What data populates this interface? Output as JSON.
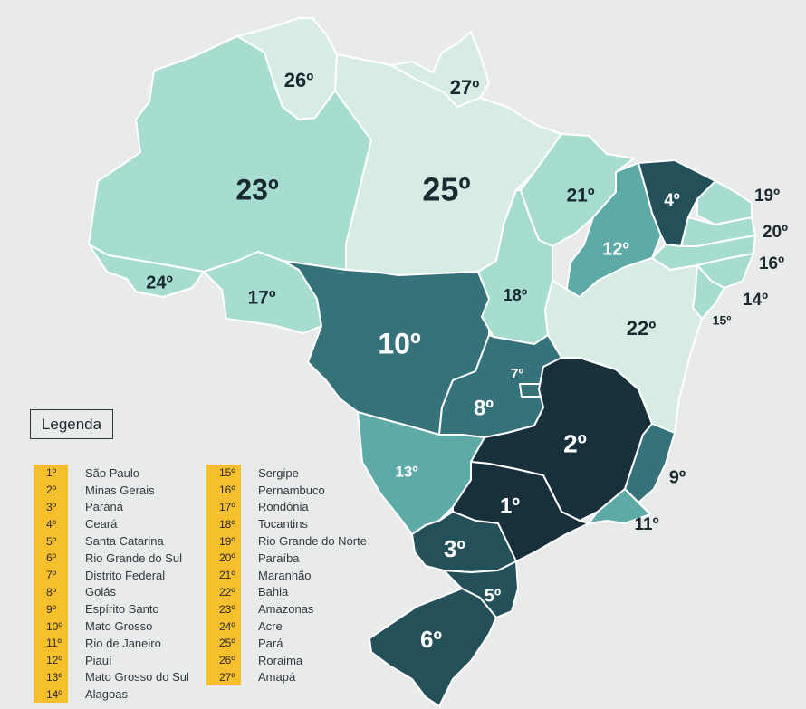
{
  "colors": {
    "tier_lightest": "#d8ece6",
    "tier_light": "#a6ddd0",
    "tier_mid": "#5daaa6",
    "tier_dark": "#35727a",
    "tier_darker": "#24505a",
    "tier_darkest": "#17303c",
    "legend_rank_bg": "#f6bf2c"
  },
  "legend": {
    "title": "Legenda",
    "entries": [
      {
        "rank": "1º",
        "name": "São Paulo"
      },
      {
        "rank": "2º",
        "name": "Minas Gerais"
      },
      {
        "rank": "3º",
        "name": "Paraná"
      },
      {
        "rank": "4º",
        "name": "Ceará"
      },
      {
        "rank": "5º",
        "name": "Santa Catarina"
      },
      {
        "rank": "6º",
        "name": "Rio Grande do Sul"
      },
      {
        "rank": "7º",
        "name": "Distrito Federal"
      },
      {
        "rank": "8º",
        "name": "Goiás"
      },
      {
        "rank": "9º",
        "name": "Espírito Santo"
      },
      {
        "rank": "10º",
        "name": "Mato Grosso"
      },
      {
        "rank": "11º",
        "name": "Rio de Janeiro"
      },
      {
        "rank": "12º",
        "name": "Piauí"
      },
      {
        "rank": "13º",
        "name": "Mato Grosso do Sul"
      },
      {
        "rank": "14º",
        "name": "Alagoas"
      },
      {
        "rank": "15º",
        "name": "Sergipe"
      },
      {
        "rank": "16º",
        "name": "Pernambuco"
      },
      {
        "rank": "17º",
        "name": "Rondônia"
      },
      {
        "rank": "18º",
        "name": "Tocantins"
      },
      {
        "rank": "19º",
        "name": "Rio Grande do Norte"
      },
      {
        "rank": "20º",
        "name": "Paraíba"
      },
      {
        "rank": "21º",
        "name": "Maranhão"
      },
      {
        "rank": "22º",
        "name": "Bahia"
      },
      {
        "rank": "23º",
        "name": "Amazonas"
      },
      {
        "rank": "24º",
        "name": "Acre"
      },
      {
        "rank": "25º",
        "name": "Pará"
      },
      {
        "rank": "26º",
        "name": "Roraima"
      },
      {
        "rank": "27º",
        "name": "Amapá"
      }
    ]
  },
  "states": [
    {
      "name": "São Paulo",
      "rank_label": "1º",
      "tier": "darkest"
    },
    {
      "name": "Minas Gerais",
      "rank_label": "2º",
      "tier": "darkest"
    },
    {
      "name": "Paraná",
      "rank_label": "3º",
      "tier": "darker"
    },
    {
      "name": "Ceará",
      "rank_label": "4º",
      "tier": "darker"
    },
    {
      "name": "Santa Catarina",
      "rank_label": "5º",
      "tier": "darker"
    },
    {
      "name": "Rio Grande do Sul",
      "rank_label": "6º",
      "tier": "darker"
    },
    {
      "name": "Distrito Federal",
      "rank_label": "7º",
      "tier": "dark"
    },
    {
      "name": "Goiás",
      "rank_label": "8º",
      "tier": "dark"
    },
    {
      "name": "Espírito Santo",
      "rank_label": "9º",
      "tier": "dark"
    },
    {
      "name": "Mato Grosso",
      "rank_label": "10º",
      "tier": "dark"
    },
    {
      "name": "Rio de Janeiro",
      "rank_label": "11º",
      "tier": "mid"
    },
    {
      "name": "Piauí",
      "rank_label": "12º",
      "tier": "mid"
    },
    {
      "name": "Mato Grosso do Sul",
      "rank_label": "13º",
      "tier": "mid"
    },
    {
      "name": "Alagoas",
      "rank_label": "14º",
      "tier": "light"
    },
    {
      "name": "Sergipe",
      "rank_label": "15º",
      "tier": "light"
    },
    {
      "name": "Pernambuco",
      "rank_label": "16º",
      "tier": "light"
    },
    {
      "name": "Rondônia",
      "rank_label": "17º",
      "tier": "light"
    },
    {
      "name": "Tocantins",
      "rank_label": "18º",
      "tier": "light"
    },
    {
      "name": "Rio Grande do Norte",
      "rank_label": "19º",
      "tier": "light"
    },
    {
      "name": "Paraíba",
      "rank_label": "20º",
      "tier": "light"
    },
    {
      "name": "Maranhão",
      "rank_label": "21º",
      "tier": "light"
    },
    {
      "name": "Bahia",
      "rank_label": "22º",
      "tier": "lightest"
    },
    {
      "name": "Amazonas",
      "rank_label": "23º",
      "tier": "light"
    },
    {
      "name": "Acre",
      "rank_label": "24º",
      "tier": "light"
    },
    {
      "name": "Pará",
      "rank_label": "25º",
      "tier": "lightest"
    },
    {
      "name": "Roraima",
      "rank_label": "26º",
      "tier": "lightest"
    },
    {
      "name": "Amapá",
      "rank_label": "27º",
      "tier": "lightest"
    }
  ]
}
